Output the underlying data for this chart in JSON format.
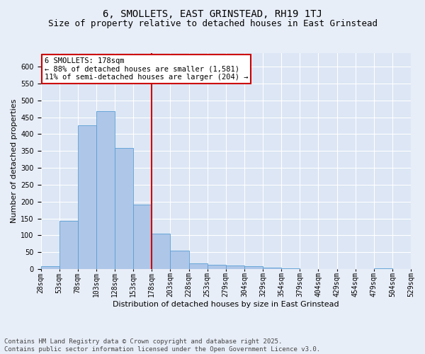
{
  "title": "6, SMOLLETS, EAST GRINSTEAD, RH19 1TJ",
  "subtitle": "Size of property relative to detached houses in East Grinstead",
  "xlabel": "Distribution of detached houses by size in East Grinstead",
  "ylabel": "Number of detached properties",
  "bar_values": [
    8,
    143,
    425,
    468,
    358,
    191,
    105,
    55,
    16,
    12,
    10,
    8,
    4,
    2,
    1,
    0,
    0,
    0,
    3,
    0
  ],
  "all_labels": [
    "28sqm",
    "53sqm",
    "78sqm",
    "103sqm",
    "128sqm",
    "153sqm",
    "178sqm",
    "203sqm",
    "228sqm",
    "253sqm",
    "279sqm",
    "304sqm",
    "329sqm",
    "354sqm",
    "379sqm",
    "404sqm",
    "429sqm",
    "454sqm",
    "479sqm",
    "504sqm",
    "529sqm"
  ],
  "bar_color": "#aec6e8",
  "bar_edge_color": "#5a9fd4",
  "vline_color": "#cc0000",
  "annotation_text": "6 SMOLLETS: 178sqm\n← 88% of detached houses are smaller (1,581)\n11% of semi-detached houses are larger (204) →",
  "annotation_box_color": "#cc0000",
  "ylim": [
    0,
    640
  ],
  "bg_color": "#dce6f5",
  "grid_color": "#ffffff",
  "fig_bg_color": "#e8eef8",
  "footer_text": "Contains HM Land Registry data © Crown copyright and database right 2025.\nContains public sector information licensed under the Open Government Licence v3.0.",
  "title_fontsize": 10,
  "subtitle_fontsize": 9,
  "xlabel_fontsize": 8,
  "ylabel_fontsize": 8,
  "tick_fontsize": 7,
  "annotation_fontsize": 7.5,
  "footer_fontsize": 6.5
}
